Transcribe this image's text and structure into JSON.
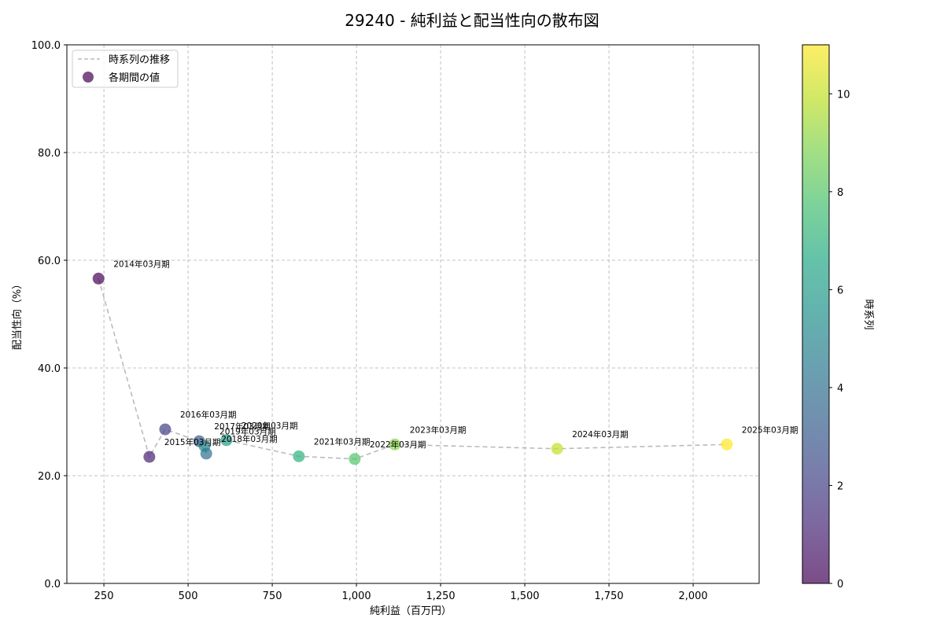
{
  "chart_data": {
    "type": "scatter",
    "title": "29240 - 純利益と配当性向の散布図",
    "xlabel": "純利益（百万円）",
    "ylabel": "配当性向（%）",
    "xlim": [
      140,
      2196
    ],
    "ylim": [
      0,
      100
    ],
    "xticks": [
      250,
      500,
      750,
      1000,
      1250,
      1500,
      1750,
      2000
    ],
    "xtick_labels": [
      "250",
      "500",
      "750",
      "1,000",
      "1,250",
      "1,500",
      "1,750",
      "2,000"
    ],
    "yticks": [
      0,
      20,
      40,
      60,
      80,
      100
    ],
    "ytick_labels": [
      "0.0",
      "20.0",
      "40.0",
      "60.0",
      "80.0",
      "100.0"
    ],
    "grid": true,
    "legend": {
      "position": "upper left",
      "entries": [
        {
          "label": "時系列の推移",
          "style": "dashed-line",
          "color": "#bbbbbb"
        },
        {
          "label": "各期間の値",
          "style": "marker",
          "color": "#6a3d8a"
        }
      ]
    },
    "colorbar": {
      "label": "時系列",
      "range": [
        0,
        11
      ],
      "ticks": [
        0,
        2,
        4,
        6,
        8,
        10
      ],
      "colormap": "viridis",
      "alpha": 0.7
    },
    "points": [
      {
        "label": "2014年03月期",
        "x": 234,
        "y": 56.6,
        "t": 0
      },
      {
        "label": "2015年03月期",
        "x": 385,
        "y": 23.5,
        "t": 1
      },
      {
        "label": "2016年03月期",
        "x": 432,
        "y": 28.6,
        "t": 2
      },
      {
        "label": "2017年03月期",
        "x": 533,
        "y": 26.4,
        "t": 3
      },
      {
        "label": "2018年03月期",
        "x": 554,
        "y": 24.1,
        "t": 4
      },
      {
        "label": "2019年03月期",
        "x": 549,
        "y": 25.5,
        "t": 5
      },
      {
        "label": "2020年03月期",
        "x": 614,
        "y": 26.6,
        "t": 6
      },
      {
        "label": "2021年03月期",
        "x": 829,
        "y": 23.6,
        "t": 7
      },
      {
        "label": "2022年03月期",
        "x": 995,
        "y": 23.1,
        "t": 8
      },
      {
        "label": "2023年03月期",
        "x": 1114,
        "y": 25.8,
        "t": 9
      },
      {
        "label": "2024年03月期",
        "x": 1596,
        "y": 25.0,
        "t": 10
      },
      {
        "label": "2025年03月期",
        "x": 2100,
        "y": 25.8,
        "t": 11
      }
    ]
  }
}
